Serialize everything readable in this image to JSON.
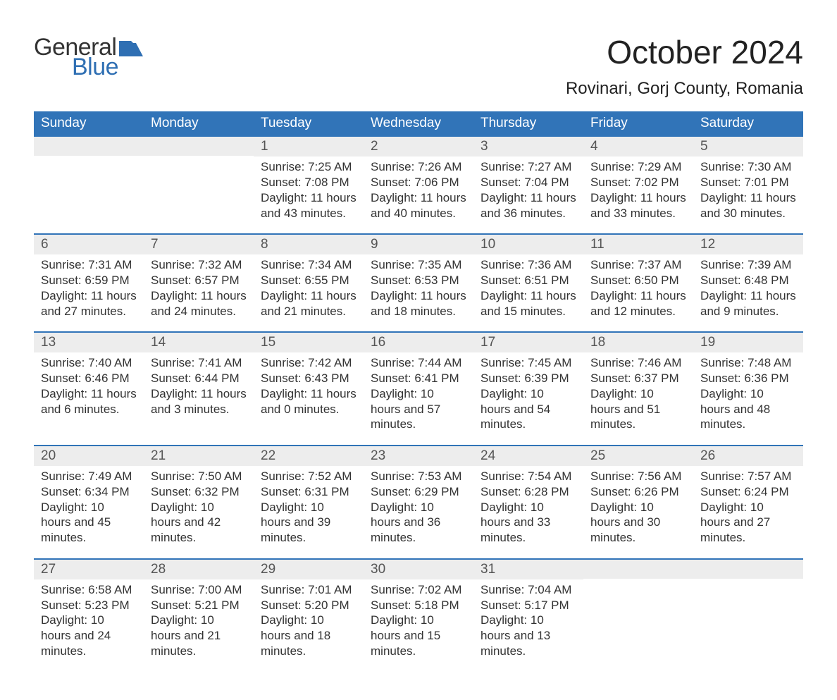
{
  "brand": {
    "word1": "General",
    "word2": "Blue",
    "accent_color": "#2f6fb3"
  },
  "title": "October 2024",
  "location": "Rovinari, Gorj County, Romania",
  "header_bg": "#3174b8",
  "band_bg": "#ededed",
  "day_headers": [
    "Sunday",
    "Monday",
    "Tuesday",
    "Wednesday",
    "Thursday",
    "Friday",
    "Saturday"
  ],
  "weeks": [
    [
      {
        "n": "",
        "sunrise": "",
        "sunset": "",
        "daylight": ""
      },
      {
        "n": "",
        "sunrise": "",
        "sunset": "",
        "daylight": ""
      },
      {
        "n": "1",
        "sunrise": "Sunrise: 7:25 AM",
        "sunset": "Sunset: 7:08 PM",
        "daylight": "Daylight: 11 hours and 43 minutes."
      },
      {
        "n": "2",
        "sunrise": "Sunrise: 7:26 AM",
        "sunset": "Sunset: 7:06 PM",
        "daylight": "Daylight: 11 hours and 40 minutes."
      },
      {
        "n": "3",
        "sunrise": "Sunrise: 7:27 AM",
        "sunset": "Sunset: 7:04 PM",
        "daylight": "Daylight: 11 hours and 36 minutes."
      },
      {
        "n": "4",
        "sunrise": "Sunrise: 7:29 AM",
        "sunset": "Sunset: 7:02 PM",
        "daylight": "Daylight: 11 hours and 33 minutes."
      },
      {
        "n": "5",
        "sunrise": "Sunrise: 7:30 AM",
        "sunset": "Sunset: 7:01 PM",
        "daylight": "Daylight: 11 hours and 30 minutes."
      }
    ],
    [
      {
        "n": "6",
        "sunrise": "Sunrise: 7:31 AM",
        "sunset": "Sunset: 6:59 PM",
        "daylight": "Daylight: 11 hours and 27 minutes."
      },
      {
        "n": "7",
        "sunrise": "Sunrise: 7:32 AM",
        "sunset": "Sunset: 6:57 PM",
        "daylight": "Daylight: 11 hours and 24 minutes."
      },
      {
        "n": "8",
        "sunrise": "Sunrise: 7:34 AM",
        "sunset": "Sunset: 6:55 PM",
        "daylight": "Daylight: 11 hours and 21 minutes."
      },
      {
        "n": "9",
        "sunrise": "Sunrise: 7:35 AM",
        "sunset": "Sunset: 6:53 PM",
        "daylight": "Daylight: 11 hours and 18 minutes."
      },
      {
        "n": "10",
        "sunrise": "Sunrise: 7:36 AM",
        "sunset": "Sunset: 6:51 PM",
        "daylight": "Daylight: 11 hours and 15 minutes."
      },
      {
        "n": "11",
        "sunrise": "Sunrise: 7:37 AM",
        "sunset": "Sunset: 6:50 PM",
        "daylight": "Daylight: 11 hours and 12 minutes."
      },
      {
        "n": "12",
        "sunrise": "Sunrise: 7:39 AM",
        "sunset": "Sunset: 6:48 PM",
        "daylight": "Daylight: 11 hours and 9 minutes."
      }
    ],
    [
      {
        "n": "13",
        "sunrise": "Sunrise: 7:40 AM",
        "sunset": "Sunset: 6:46 PM",
        "daylight": "Daylight: 11 hours and 6 minutes."
      },
      {
        "n": "14",
        "sunrise": "Sunrise: 7:41 AM",
        "sunset": "Sunset: 6:44 PM",
        "daylight": "Daylight: 11 hours and 3 minutes."
      },
      {
        "n": "15",
        "sunrise": "Sunrise: 7:42 AM",
        "sunset": "Sunset: 6:43 PM",
        "daylight": "Daylight: 11 hours and 0 minutes."
      },
      {
        "n": "16",
        "sunrise": "Sunrise: 7:44 AM",
        "sunset": "Sunset: 6:41 PM",
        "daylight": "Daylight: 10 hours and 57 minutes."
      },
      {
        "n": "17",
        "sunrise": "Sunrise: 7:45 AM",
        "sunset": "Sunset: 6:39 PM",
        "daylight": "Daylight: 10 hours and 54 minutes."
      },
      {
        "n": "18",
        "sunrise": "Sunrise: 7:46 AM",
        "sunset": "Sunset: 6:37 PM",
        "daylight": "Daylight: 10 hours and 51 minutes."
      },
      {
        "n": "19",
        "sunrise": "Sunrise: 7:48 AM",
        "sunset": "Sunset: 6:36 PM",
        "daylight": "Daylight: 10 hours and 48 minutes."
      }
    ],
    [
      {
        "n": "20",
        "sunrise": "Sunrise: 7:49 AM",
        "sunset": "Sunset: 6:34 PM",
        "daylight": "Daylight: 10 hours and 45 minutes."
      },
      {
        "n": "21",
        "sunrise": "Sunrise: 7:50 AM",
        "sunset": "Sunset: 6:32 PM",
        "daylight": "Daylight: 10 hours and 42 minutes."
      },
      {
        "n": "22",
        "sunrise": "Sunrise: 7:52 AM",
        "sunset": "Sunset: 6:31 PM",
        "daylight": "Daylight: 10 hours and 39 minutes."
      },
      {
        "n": "23",
        "sunrise": "Sunrise: 7:53 AM",
        "sunset": "Sunset: 6:29 PM",
        "daylight": "Daylight: 10 hours and 36 minutes."
      },
      {
        "n": "24",
        "sunrise": "Sunrise: 7:54 AM",
        "sunset": "Sunset: 6:28 PM",
        "daylight": "Daylight: 10 hours and 33 minutes."
      },
      {
        "n": "25",
        "sunrise": "Sunrise: 7:56 AM",
        "sunset": "Sunset: 6:26 PM",
        "daylight": "Daylight: 10 hours and 30 minutes."
      },
      {
        "n": "26",
        "sunrise": "Sunrise: 7:57 AM",
        "sunset": "Sunset: 6:24 PM",
        "daylight": "Daylight: 10 hours and 27 minutes."
      }
    ],
    [
      {
        "n": "27",
        "sunrise": "Sunrise: 6:58 AM",
        "sunset": "Sunset: 5:23 PM",
        "daylight": "Daylight: 10 hours and 24 minutes."
      },
      {
        "n": "28",
        "sunrise": "Sunrise: 7:00 AM",
        "sunset": "Sunset: 5:21 PM",
        "daylight": "Daylight: 10 hours and 21 minutes."
      },
      {
        "n": "29",
        "sunrise": "Sunrise: 7:01 AM",
        "sunset": "Sunset: 5:20 PM",
        "daylight": "Daylight: 10 hours and 18 minutes."
      },
      {
        "n": "30",
        "sunrise": "Sunrise: 7:02 AM",
        "sunset": "Sunset: 5:18 PM",
        "daylight": "Daylight: 10 hours and 15 minutes."
      },
      {
        "n": "31",
        "sunrise": "Sunrise: 7:04 AM",
        "sunset": "Sunset: 5:17 PM",
        "daylight": "Daylight: 10 hours and 13 minutes."
      },
      {
        "n": "",
        "sunrise": "",
        "sunset": "",
        "daylight": ""
      },
      {
        "n": "",
        "sunrise": "",
        "sunset": "",
        "daylight": ""
      }
    ]
  ]
}
